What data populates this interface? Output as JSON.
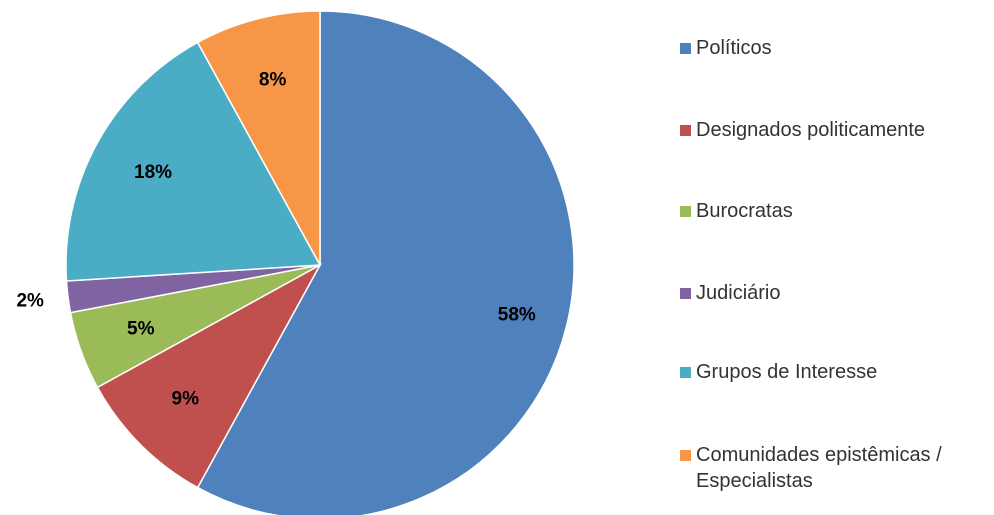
{
  "chart_data": {
    "type": "pie",
    "categories": [
      "Políticos",
      "Designados politicamente",
      "Burocratas",
      "Judiciário",
      "Grupos de Interesse",
      "Comunidades epistêmicas / Especialistas"
    ],
    "values": [
      58,
      9,
      5,
      2,
      18,
      8
    ],
    "value_labels": [
      "58%",
      "9%",
      "5%",
      "2%",
      "18%",
      "8%"
    ],
    "colors": [
      "#4f81bd",
      "#c0504d",
      "#9bbb59",
      "#8064a2",
      "#4bacc6",
      "#f79646"
    ],
    "legend": "right"
  }
}
